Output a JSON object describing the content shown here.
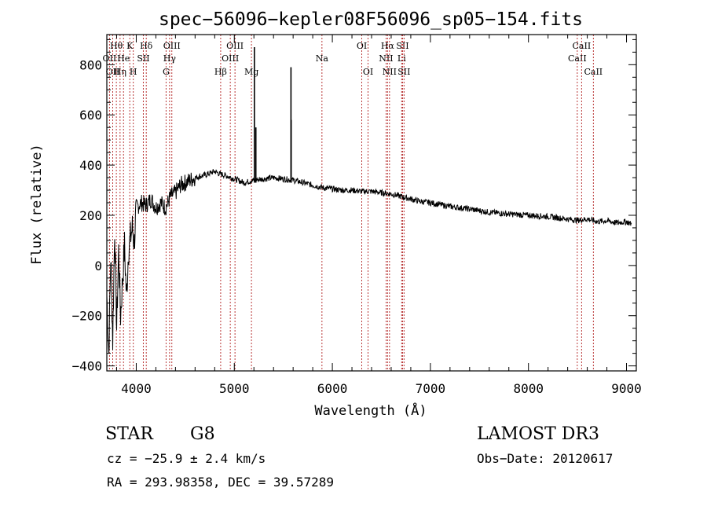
{
  "chart_data": {
    "type": "line",
    "title": "spec−56096−kepler08F56096_sp05−154.fits",
    "xlabel": "Wavelength (Å)",
    "ylabel": "Flux (relative)",
    "xlim": [
      3700,
      9100
    ],
    "ylim": [
      -420,
      920
    ],
    "x_ticks": [
      4000,
      5000,
      6000,
      7000,
      8000,
      9000
    ],
    "y_ticks": [
      -400,
      -200,
      0,
      200,
      400,
      600,
      800
    ],
    "grid": false,
    "line_marker_color": "#b22222",
    "series": [
      {
        "name": "flux",
        "x": [
          3700,
          3720,
          3740,
          3760,
          3780,
          3800,
          3820,
          3840,
          3860,
          3880,
          3900,
          3920,
          3940,
          3960,
          3980,
          4000,
          4050,
          4100,
          4150,
          4200,
          4250,
          4300,
          4350,
          4400,
          4450,
          4500,
          4600,
          4700,
          4800,
          4850,
          4900,
          5000,
          5100,
          5200,
          5300,
          5400,
          5500,
          5600,
          5700,
          5800,
          5900,
          6000,
          6100,
          6200,
          6300,
          6400,
          6500,
          6600,
          6700,
          6800,
          6900,
          7000,
          7200,
          7400,
          7600,
          7800,
          8000,
          8200,
          8400,
          8500,
          8600,
          8700,
          8800,
          8900,
          9000,
          9050
        ],
        "values": [
          -120,
          -350,
          40,
          -300,
          150,
          -250,
          60,
          -200,
          -60,
          80,
          -130,
          60,
          110,
          150,
          90,
          230,
          250,
          240,
          265,
          230,
          250,
          230,
          275,
          290,
          320,
          330,
          350,
          360,
          375,
          365,
          360,
          345,
          330,
          340,
          345,
          350,
          345,
          340,
          330,
          320,
          310,
          305,
          300,
          300,
          295,
          295,
          290,
          285,
          275,
          265,
          255,
          250,
          235,
          225,
          212,
          205,
          200,
          195,
          185,
          180,
          185,
          175,
          178,
          170,
          175,
          165
        ]
      }
    ],
    "spikes": [
      {
        "x": 5205,
        "peak": 870
      },
      {
        "x": 5220,
        "peak": 550
      },
      {
        "x": 5578,
        "peak": 790
      },
      {
        "x": 5580,
        "peak": 580
      }
    ],
    "line_markers": [
      {
        "wl": 3727,
        "label": "OII",
        "row": 2
      },
      {
        "wl": 3760,
        "label": "OII",
        "row": 3
      },
      {
        "wl": 3797,
        "label": "Hθ",
        "row": 1
      },
      {
        "wl": 3835,
        "label": "Hη",
        "row": 3
      },
      {
        "wl": 3870,
        "label": "He",
        "row": 2
      },
      {
        "wl": 3934,
        "label": "K",
        "row": 1
      },
      {
        "wl": 3970,
        "label": "H",
        "row": 3
      },
      {
        "wl": 4072,
        "label": "SII",
        "row": 2
      },
      {
        "wl": 4102,
        "label": "Hδ",
        "row": 1
      },
      {
        "wl": 4304,
        "label": "G",
        "row": 3
      },
      {
        "wl": 4340,
        "label": "Hγ",
        "row": 2
      },
      {
        "wl": 4363,
        "label": "OIII",
        "row": 1
      },
      {
        "wl": 4861,
        "label": "Hβ",
        "row": 3
      },
      {
        "wl": 4959,
        "label": "OIII",
        "row": 2
      },
      {
        "wl": 5007,
        "label": "OIII",
        "row": 1
      },
      {
        "wl": 5175,
        "label": "Mg",
        "row": 3
      },
      {
        "wl": 5894,
        "label": "Na",
        "row": 2
      },
      {
        "wl": 6300,
        "label": "OI",
        "row": 1
      },
      {
        "wl": 6364,
        "label": "OI",
        "row": 3
      },
      {
        "wl": 6548,
        "label": "NII",
        "row": 2
      },
      {
        "wl": 6563,
        "label": "Hα",
        "row": 1
      },
      {
        "wl": 6583,
        "label": "NII",
        "row": 3
      },
      {
        "wl": 6707,
        "label": "Li",
        "row": 2
      },
      {
        "wl": 6716,
        "label": "SII",
        "row": 1
      },
      {
        "wl": 6731,
        "label": "SII",
        "row": 3
      },
      {
        "wl": 8498,
        "label": "CaII",
        "row": 2
      },
      {
        "wl": 8542,
        "label": "CaII",
        "row": 1
      },
      {
        "wl": 8662,
        "label": "CaII",
        "row": 3
      }
    ]
  },
  "info": {
    "object_class": "STAR",
    "subclass": "G8",
    "survey": "LAMOST DR3",
    "cz": "cz = −25.9 ± 2.4 km/s",
    "obs_date": "Obs−Date: 20120617",
    "coords": "RA = 293.98358, DEC =  39.57289"
  }
}
